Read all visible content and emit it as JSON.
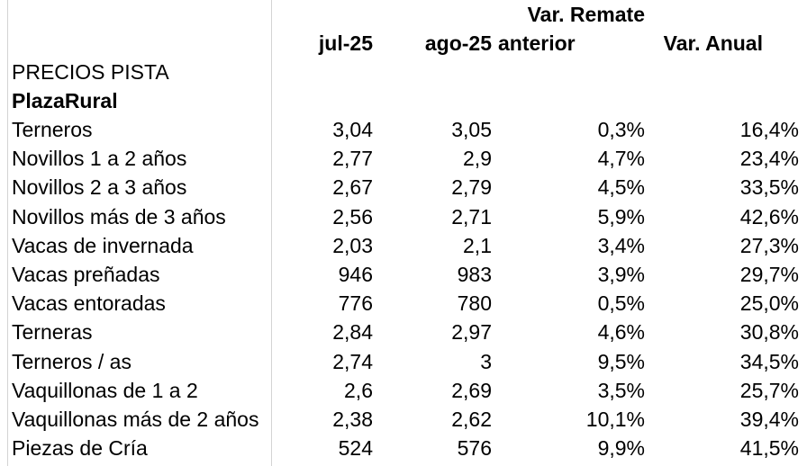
{
  "headers": {
    "var_remate_line1": "Var. Remate",
    "col1": "jul-25",
    "col2": "ago-25",
    "col3": "anterior",
    "col4": "Var. Anual"
  },
  "section_title": "PRECIOS PISTA",
  "section_subtitle": "PlazaRural",
  "rows": [
    {
      "label": "Terneros",
      "jul": "3,04",
      "ago": "3,05",
      "var_remate": "0,3%",
      "var_anual": "16,4%"
    },
    {
      "label": "Novillos 1 a 2 años",
      "jul": "2,77",
      "ago": "2,9",
      "var_remate": "4,7%",
      "var_anual": "23,4%"
    },
    {
      "label": "Novillos 2 a 3 años",
      "jul": "2,67",
      "ago": "2,79",
      "var_remate": "4,5%",
      "var_anual": "33,5%"
    },
    {
      "label": "Novillos más de 3 años",
      "jul": "2,56",
      "ago": "2,71",
      "var_remate": "5,9%",
      "var_anual": "42,6%"
    },
    {
      "label": "Vacas de invernada",
      "jul": "2,03",
      "ago": "2,1",
      "var_remate": "3,4%",
      "var_anual": "27,3%"
    },
    {
      "label": "Vacas preñadas",
      "jul": "946",
      "ago": "983",
      "var_remate": "3,9%",
      "var_anual": "29,7%"
    },
    {
      "label": "Vacas entoradas",
      "jul": "776",
      "ago": "780",
      "var_remate": "0,5%",
      "var_anual": "25,0%"
    },
    {
      "label": "Terneras",
      "jul": "2,84",
      "ago": "2,97",
      "var_remate": "4,6%",
      "var_anual": "30,8%"
    },
    {
      "label": "Terneros / as",
      "jul": "2,74",
      "ago": "3",
      "var_remate": "9,5%",
      "var_anual": "34,5%"
    },
    {
      "label": "Vaquillonas de 1 a 2",
      "jul": "2,6",
      "ago": "2,69",
      "var_remate": "3,5%",
      "var_anual": "25,7%"
    },
    {
      "label": "Vaquillonas más de 2 años",
      "jul": "2,38",
      "ago": "2,62",
      "var_remate": "10,1%",
      "var_anual": "39,4%"
    },
    {
      "label": "Piezas de Cría",
      "jul": "524",
      "ago": "576",
      "var_remate": "9,9%",
      "var_anual": "41,5%"
    }
  ]
}
